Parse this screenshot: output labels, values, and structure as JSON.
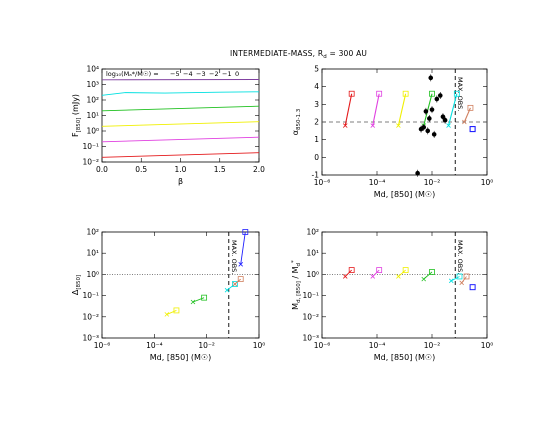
{
  "figure": {
    "title": "INTERMEDIATE-MASS, R",
    "title_sub": "d",
    "title_tail": " = 300 AU"
  },
  "colors": {
    "red": "#e41a1c",
    "magenta": "#e040e0",
    "yellow": "#f0f000",
    "green": "#20c020",
    "cyan": "#00e0e0",
    "tan": "#d08060",
    "blue": "#2020ff",
    "purple": "#8040a0",
    "black": "#000000"
  },
  "chart_data": [
    {
      "id": "top-left",
      "type": "line",
      "ylabel": "F[850] (mJy)",
      "ylabel_parts": {
        "main": "F",
        "sub": "[850]",
        "tail": " (mJy)"
      },
      "xlabel": "β",
      "xscale": "linear",
      "yscale": "log",
      "xlim": [
        0.0,
        2.0
      ],
      "ylim": [
        0.01,
        10000
      ],
      "xticks": [
        "0.0",
        "0.5",
        "1.0",
        "1.5",
        "2.0"
      ],
      "yticks": [
        "10⁻²",
        "10⁻¹",
        "10⁰",
        "10¹",
        "10²",
        "10³",
        "10⁴"
      ],
      "legend_text": "log₁₀(Mₐ*/M☉) = ",
      "legend_values": [
        "−5",
        "−4",
        "−3",
        "−2",
        "−1",
        "0"
      ],
      "series": [
        {
          "color": "red",
          "x": [
            0,
            2
          ],
          "y": [
            0.02,
            0.04
          ]
        },
        {
          "color": "magenta",
          "x": [
            0,
            2
          ],
          "y": [
            0.2,
            0.4
          ]
        },
        {
          "color": "yellow",
          "x": [
            0,
            2
          ],
          "y": [
            2,
            4
          ]
        },
        {
          "color": "green",
          "x": [
            0,
            2
          ],
          "y": [
            20,
            40
          ]
        },
        {
          "color": "cyan",
          "x": [
            0,
            0.3,
            0.8,
            1.5,
            2
          ],
          "y": [
            200,
            300,
            280,
            320,
            340
          ]
        },
        {
          "color": "purple",
          "x": [
            0,
            2
          ],
          "y": [
            2000,
            2100
          ]
        }
      ]
    },
    {
      "id": "top-right",
      "type": "scatter",
      "ylabel": "α850-1.3",
      "ylabel_parts": {
        "main": "α",
        "sub": "850-1.3"
      },
      "xlabel": "Md, [850] (M☉)",
      "xscale": "log",
      "yscale": "linear",
      "xlim": [
        1e-06,
        1
      ],
      "ylim": [
        -1,
        5
      ],
      "xticks": [
        "10⁻⁶",
        "10⁻⁴",
        "10⁻²",
        "10⁰"
      ],
      "yticks": [
        "-1",
        "0",
        "1",
        "2",
        "3",
        "4",
        "5"
      ],
      "hline": 2.0,
      "vline": 0.07,
      "vline_label": "MAX. OBS.",
      "tracks": [
        {
          "color": "red",
          "x": [
            7e-06,
            1.2e-05
          ],
          "y": [
            1.8,
            3.6
          ]
        },
        {
          "color": "magenta",
          "x": [
            7e-05,
            0.00012
          ],
          "y": [
            1.8,
            3.6
          ]
        },
        {
          "color": "yellow",
          "x": [
            0.0006,
            0.0011
          ],
          "y": [
            1.8,
            3.6
          ]
        },
        {
          "color": "green",
          "x": [
            0.005,
            0.01
          ],
          "y": [
            1.8,
            3.6
          ]
        },
        {
          "color": "cyan",
          "x": [
            0.04,
            0.08
          ],
          "y": [
            1.8,
            3.6
          ]
        },
        {
          "color": "tan",
          "x": [
            0.15,
            0.25
          ],
          "y": [
            2.0,
            2.8
          ]
        }
      ],
      "points": {
        "x": [
          0.004,
          0.005,
          0.007,
          0.008,
          0.009,
          0.01,
          0.012,
          0.015,
          0.02,
          0.025,
          0.03,
          0.003,
          0.006
        ],
        "y": [
          1.6,
          1.7,
          1.5,
          2.2,
          4.5,
          2.7,
          1.3,
          3.3,
          3.5,
          2.3,
          2.1,
          -0.9,
          2.6
        ]
      },
      "blue_marker": {
        "x": 0.3,
        "y": 1.6
      }
    },
    {
      "id": "bottom-left",
      "type": "line",
      "ylabel": "Δ[850]",
      "ylabel_parts": {
        "main": "Δ",
        "sub": "[850]"
      },
      "xlabel": "Md, [850] (M☉)",
      "xscale": "log",
      "yscale": "log",
      "xlim": [
        1e-06,
        1
      ],
      "ylim": [
        0.001,
        100
      ],
      "xticks": [
        "10⁻⁶",
        "10⁻⁴",
        "10⁻²",
        "10⁰"
      ],
      "yticks": [
        "10⁻³",
        "10⁻²",
        "10⁻¹",
        "10⁰",
        "10¹",
        "10²"
      ],
      "hline": 1.0,
      "vline": 0.07,
      "vline_label": "MAX. OBS.",
      "series": [
        {
          "color": "yellow",
          "x": [
            0.0003,
            0.0007
          ],
          "y": [
            0.013,
            0.02
          ]
        },
        {
          "color": "green",
          "x": [
            0.003,
            0.008
          ],
          "y": [
            0.05,
            0.08
          ]
        },
        {
          "color": "cyan",
          "x": [
            0.06,
            0.12
          ],
          "y": [
            0.18,
            0.35
          ]
        },
        {
          "color": "tan",
          "x": [
            0.12,
            0.2
          ],
          "y": [
            0.35,
            0.6
          ]
        },
        {
          "color": "blue",
          "x": [
            0.2,
            0.3
          ],
          "y": [
            3,
            100
          ]
        }
      ]
    },
    {
      "id": "bottom-right",
      "type": "line",
      "ylabel": "Md, [850] / Md*",
      "ylabel_parts": {
        "main": "M",
        "sub": "d, [850]",
        "mid": " / M",
        "sub2": "d",
        "sup": "*"
      },
      "xlabel": "Md, [850] (M☉)",
      "xscale": "log",
      "yscale": "log",
      "xlim": [
        1e-06,
        1
      ],
      "ylim": [
        0.001,
        100
      ],
      "xticks": [
        "10⁻⁶",
        "10⁻⁴",
        "10⁻²",
        "10⁰"
      ],
      "yticks": [
        "10⁻³",
        "10⁻²",
        "10⁻¹",
        "10⁰",
        "10¹",
        "10²"
      ],
      "hline": 1.0,
      "vline": 0.07,
      "vline_label": "MAX. OBS.",
      "series": [
        {
          "color": "red",
          "x": [
            7e-06,
            1.2e-05
          ],
          "y": [
            0.8,
            1.6
          ]
        },
        {
          "color": "magenta",
          "x": [
            7e-05,
            0.00012
          ],
          "y": [
            0.8,
            1.6
          ]
        },
        {
          "color": "yellow",
          "x": [
            0.0006,
            0.0011
          ],
          "y": [
            0.8,
            1.6
          ]
        },
        {
          "color": "green",
          "x": [
            0.005,
            0.01
          ],
          "y": [
            0.6,
            1.3
          ]
        },
        {
          "color": "cyan",
          "x": [
            0.05,
            0.1
          ],
          "y": [
            0.5,
            0.8
          ]
        },
        {
          "color": "tan",
          "x": [
            0.12,
            0.18
          ],
          "y": [
            0.4,
            0.8
          ]
        },
        {
          "color": "blue",
          "x": [
            0.3,
            0.3
          ],
          "y": [
            0.25,
            0.25
          ]
        }
      ]
    }
  ]
}
